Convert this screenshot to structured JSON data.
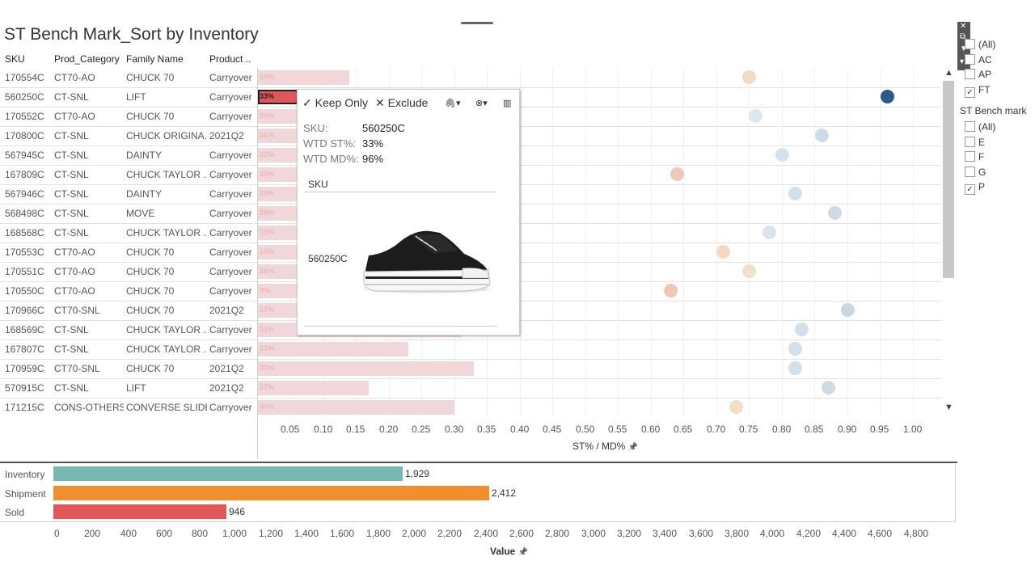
{
  "title": "ST Bench Mark_Sort by Inventory",
  "headers": [
    "SKU",
    "Prod_Category",
    "Family Name",
    "Product .."
  ],
  "rows": [
    {
      "sku": "170554C",
      "cat": "CT70-AO",
      "family": "CHUCK 70",
      "product": "Carryover",
      "st": "14%",
      "st_value": 0.14,
      "md_value": 0.75,
      "dot_color": "#f0dcc4"
    },
    {
      "sku": "560250C",
      "cat": "CT-SNL",
      "family": "LIFT",
      "product": "Carryover",
      "st": "33%",
      "st_value": 0.33,
      "md_value": 0.96,
      "dot_color": "#2a5a8c",
      "selected": true
    },
    {
      "sku": "170552C",
      "cat": "CT70-AO",
      "family": "CHUCK 70",
      "product": "Carryover",
      "st": "24%",
      "st_value": 0.24,
      "md_value": 0.76,
      "dot_color": "#dfe8ef"
    },
    {
      "sku": "170800C",
      "cat": "CT-SNL",
      "family": "CHUCK ORIGINA..",
      "product": "2021Q2",
      "st": "16%",
      "st_value": 0.16,
      "md_value": 0.86,
      "dot_color": "#cfdbe6"
    },
    {
      "sku": "567945C",
      "cat": "CT-SNL",
      "family": "DAINTY",
      "product": "Carryover",
      "st": "22%",
      "st_value": 0.22,
      "md_value": 0.8,
      "dot_color": "#d6e2eb"
    },
    {
      "sku": "167809C",
      "cat": "CT-SNL",
      "family": "CHUCK TAYLOR ..",
      "product": "Carryover",
      "st": "10%",
      "st_value": 0.1,
      "md_value": 0.64,
      "dot_color": "#eec9b8"
    },
    {
      "sku": "567946C",
      "cat": "CT-SNL",
      "family": "DAINTY",
      "product": "Carryover",
      "st": "25%",
      "st_value": 0.25,
      "md_value": 0.82,
      "dot_color": "#d3dfe9"
    },
    {
      "sku": "568498C",
      "cat": "CT-SNL",
      "family": "MOVE",
      "product": "Carryover",
      "st": "29%",
      "st_value": 0.29,
      "md_value": 0.88,
      "dot_color": "#cfdbe6"
    },
    {
      "sku": "168568C",
      "cat": "CT-SNL",
      "family": "CHUCK TAYLOR ..",
      "product": "Carryover",
      "st": "13%",
      "st_value": 0.13,
      "md_value": 0.78,
      "dot_color": "#d9e4ed"
    },
    {
      "sku": "170553C",
      "cat": "CT70-AO",
      "family": "CHUCK 70",
      "product": "Carryover",
      "st": "19%",
      "st_value": 0.19,
      "md_value": 0.71,
      "dot_color": "#f3d9c0"
    },
    {
      "sku": "170551C",
      "cat": "CT70-AO",
      "family": "CHUCK 70",
      "product": "Carryover",
      "st": "16%",
      "st_value": 0.16,
      "md_value": 0.75,
      "dot_color": "#efe0c9"
    },
    {
      "sku": "170550C",
      "cat": "CT70-AO",
      "family": "CHUCK 70",
      "product": "Carryover",
      "st": "9%",
      "st_value": 0.09,
      "md_value": 0.63,
      "dot_color": "#efc8b4"
    },
    {
      "sku": "170966C",
      "cat": "CT70-SNL",
      "family": "CHUCK 70",
      "product": "2021Q2",
      "st": "17%",
      "st_value": 0.17,
      "md_value": 0.9,
      "dot_color": "#cad8e4"
    },
    {
      "sku": "168569C",
      "cat": "CT-SNL",
      "family": "CHUCK TAYLOR ..",
      "product": "Carryover",
      "st": "31%",
      "st_value": 0.31,
      "md_value": 0.83,
      "dot_color": "#d3dfe9"
    },
    {
      "sku": "167807C",
      "cat": "CT-SNL",
      "family": "CHUCK TAYLOR ..",
      "product": "Carryover",
      "st": "23%",
      "st_value": 0.23,
      "md_value": 0.82,
      "dot_color": "#d3dfe9"
    },
    {
      "sku": "170959C",
      "cat": "CT70-SNL",
      "family": "CHUCK 70",
      "product": "2021Q2",
      "st": "33%",
      "st_value": 0.33,
      "md_value": 0.82,
      "dot_color": "#d3dfe9"
    },
    {
      "sku": "570915C",
      "cat": "CT-SNL",
      "family": "LIFT",
      "product": "2021Q2",
      "st": "17%",
      "st_value": 0.17,
      "md_value": 0.87,
      "dot_color": "#cfdbe6"
    },
    {
      "sku": "171215C",
      "cat": "CONS-OTHERS",
      "family": "CONVERSE SLIDE",
      "product": "Carryover",
      "st": "30%",
      "st_value": 0.3,
      "md_value": 0.73,
      "dot_color": "#f3dfc4"
    }
  ],
  "axis": {
    "ticks": [
      "0.05",
      "0.10",
      "0.15",
      "0.20",
      "0.25",
      "0.30",
      "0.35",
      "0.40",
      "0.45",
      "0.50",
      "0.55",
      "0.60",
      "0.65",
      "0.70",
      "0.75",
      "0.80",
      "0.85",
      "0.90",
      "0.95",
      "1.00"
    ],
    "title": "ST% / MD%",
    "pin_icon": "📌"
  },
  "tooltip": {
    "keep_only": "Keep Only",
    "exclude": "Exclude",
    "check_icon": "✓",
    "x_icon": "✕",
    "sku_key": "SKU:",
    "sku_val": "560250C",
    "st_key": "WTD ST%:",
    "st_val": "33%",
    "md_key": "WTD MD%:",
    "md_val": "96%",
    "table_header": "SKU",
    "table_sku": "560250C"
  },
  "filter1": {
    "items": [
      {
        "label": "(All)",
        "checked": false
      },
      {
        "label": "AC",
        "checked": false
      },
      {
        "label": "AP",
        "checked": false
      },
      {
        "label": "FT",
        "checked": true
      }
    ]
  },
  "filter2": {
    "title": "ST Bench mark",
    "items": [
      {
        "label": "(All)",
        "checked": false
      },
      {
        "label": "E",
        "checked": false
      },
      {
        "label": "F",
        "checked": false
      },
      {
        "label": "G",
        "checked": false
      },
      {
        "label": "P",
        "checked": true
      }
    ]
  },
  "bottom_chart": {
    "categories": [
      "Inventory",
      "Shipment",
      "Sold"
    ],
    "values": [
      1929,
      2412,
      946
    ],
    "labels": [
      "1,929",
      "2,412",
      "946"
    ],
    "colors": [
      "#76b7b2",
      "#f28e2b",
      "#e15759"
    ],
    "ticks": [
      "0",
      "200",
      "400",
      "600",
      "800",
      "1,000",
      "1,200",
      "1,400",
      "1,600",
      "1,800",
      "2,000",
      "2,200",
      "2,400",
      "2,600",
      "2,800",
      "3,000",
      "3,200",
      "3,400",
      "3,600",
      "3,800",
      "4,000",
      "4,200",
      "4,400",
      "4,600",
      "4,800"
    ],
    "xlabel": "Value",
    "xlim": [
      0,
      4800
    ]
  },
  "chart_data": {
    "type": "bar",
    "categories": [
      "Inventory",
      "Shipment",
      "Sold"
    ],
    "values": [
      1929,
      2412,
      946
    ],
    "xlabel": "Value",
    "xlim": [
      0,
      4800
    ]
  }
}
